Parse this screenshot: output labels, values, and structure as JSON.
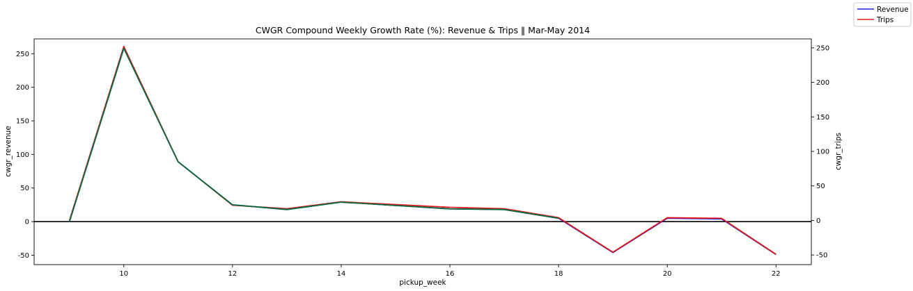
{
  "chart_data": {
    "type": "line",
    "title": "CWGR Compound Weekly Growth Rate (%): Revenue & Trips  ‖  Mar-May 2014",
    "xlabel": "pickup_week",
    "ylabel_left": "cwgr_revenue",
    "ylabel_right": "cwgr_trips",
    "xlim": [
      8.35,
      22.65
    ],
    "xticks": [
      10,
      12,
      14,
      16,
      18,
      20,
      22
    ],
    "ylim_left": [
      -64,
      272
    ],
    "yticks_left": [
      -50,
      0,
      50,
      100,
      150,
      200,
      250
    ],
    "ylim_right": [
      -64,
      263
    ],
    "yticks_right": [
      -50,
      0,
      50,
      100,
      150,
      200,
      250
    ],
    "reference_line": 0,
    "legend_position": "top-right (outside plot)",
    "series": [
      {
        "name": "Revenue",
        "color": "#1f1fe6",
        "axis": "left",
        "x": [
          9,
          10,
          11,
          12,
          13,
          14,
          15,
          16,
          17,
          18,
          19,
          20,
          21,
          22
        ],
        "values": [
          0,
          258,
          89,
          25,
          18,
          29,
          24,
          19,
          18,
          5,
          -46,
          5,
          4,
          -49
        ]
      },
      {
        "name": "Trips",
        "color": "#e01a1a",
        "axis": "right",
        "x": [
          9,
          10,
          11,
          12,
          13,
          14,
          15,
          16,
          17,
          18,
          19,
          20,
          21,
          22
        ],
        "values": [
          0,
          252,
          85,
          22,
          17,
          27,
          23,
          19,
          17,
          4,
          -46,
          4,
          3,
          -49
        ]
      }
    ],
    "overlap_color": "#0a6b3c"
  }
}
